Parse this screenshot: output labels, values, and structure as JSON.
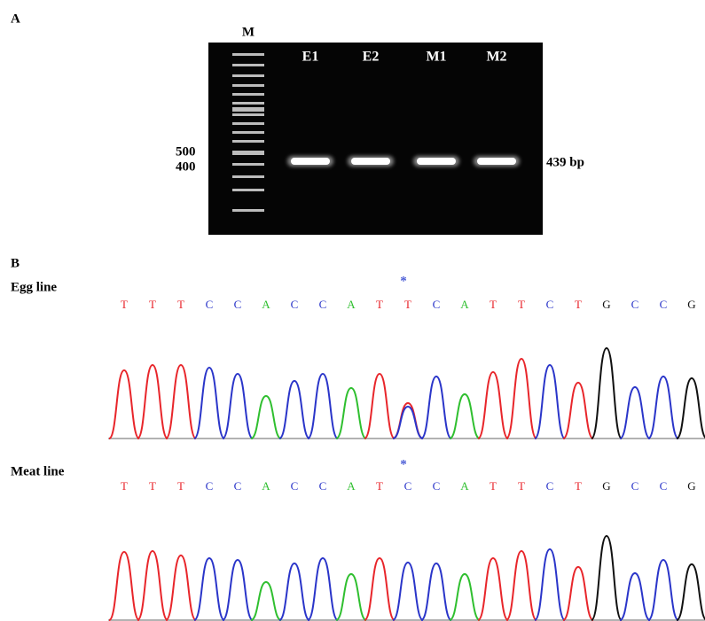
{
  "panel_a": {
    "label": "A",
    "marker_lane": "M",
    "lanes": [
      "E1",
      "E2",
      "M1",
      "M2"
    ],
    "size_markers": [
      "500",
      "400"
    ],
    "band_label": "439 bp"
  },
  "panel_b": {
    "label": "B",
    "base_colors": {
      "T": "#e8262b",
      "C": "#2a35c9",
      "A": "#2fbf2f",
      "G": "#111111"
    },
    "tracks": [
      {
        "name": "Egg line",
        "marker": "*",
        "bases": [
          "T",
          "T",
          "T",
          "C",
          "C",
          "A",
          "C",
          "C",
          "A",
          "T",
          "T",
          "C",
          "A",
          "T",
          "T",
          "C",
          "T",
          "G",
          "C",
          "C",
          "G"
        ]
      },
      {
        "name": "Meat line",
        "marker": "*",
        "bases": [
          "T",
          "T",
          "T",
          "C",
          "C",
          "A",
          "C",
          "C",
          "A",
          "T",
          "C",
          "C",
          "A",
          "T",
          "T",
          "C",
          "T",
          "G",
          "C",
          "C",
          "G"
        ]
      }
    ]
  }
}
